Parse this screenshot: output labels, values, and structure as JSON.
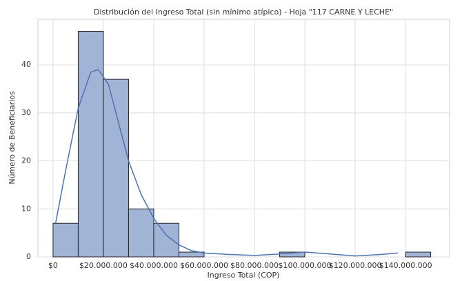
{
  "chart_data": {
    "type": "histogram",
    "title": "Distribución del Ingreso Total (sin mínimo atípico) - Hoja \"117 CARNE Y LECHE\"",
    "x_label": "Ingreso Total (COP)",
    "y_label": "Número de Beneficiarios",
    "bins": [
      0,
      10000000,
      20000000,
      30000000,
      40000000,
      50000000,
      60000000,
      70000000,
      80000000,
      90000000,
      100000000,
      110000000,
      120000000,
      130000000,
      140000000,
      150000000
    ],
    "counts": [
      7,
      47,
      37,
      10,
      7,
      1,
      0,
      0,
      0,
      1,
      0,
      0,
      0,
      0,
      1
    ],
    "color": "#a2b4d6",
    "edge_color": "#222222",
    "kde": {
      "color": "#4c72b0",
      "x": [
        1000000,
        5000000,
        10000000,
        15000000,
        18000000,
        22000000,
        26000000,
        30000000,
        35000000,
        40000000,
        45000000,
        50000000,
        55000000,
        60000000,
        70000000,
        80000000,
        90000000,
        100000000,
        110000000,
        120000000,
        130000000,
        137000000
      ],
      "y": [
        7,
        18,
        31,
        38.5,
        39,
        36,
        28,
        20,
        13,
        8,
        4.5,
        2.5,
        1.3,
        0.8,
        0.5,
        0.3,
        0.6,
        1.0,
        0.6,
        0.2,
        0.5,
        0.8
      ]
    },
    "xlim": [
      -6000000,
      157500000
    ],
    "ylim": [
      0,
      49.5
    ],
    "xticks": [
      {
        "value": 0,
        "label": "$0"
      },
      {
        "value": 20000000,
        "label": "$20.000.000"
      },
      {
        "value": 40000000,
        "label": "$40.000.000"
      },
      {
        "value": 60000000,
        "label": "$60.000.000"
      },
      {
        "value": 80000000,
        "label": "$80.000.000"
      },
      {
        "value": 100000000,
        "label": "$100.000.000"
      },
      {
        "value": 120000000,
        "label": "$120.000.000"
      },
      {
        "value": 140000000,
        "label": "$140.000.000"
      }
    ],
    "yticks": [
      0,
      10,
      20,
      30,
      40
    ],
    "grid": true
  }
}
